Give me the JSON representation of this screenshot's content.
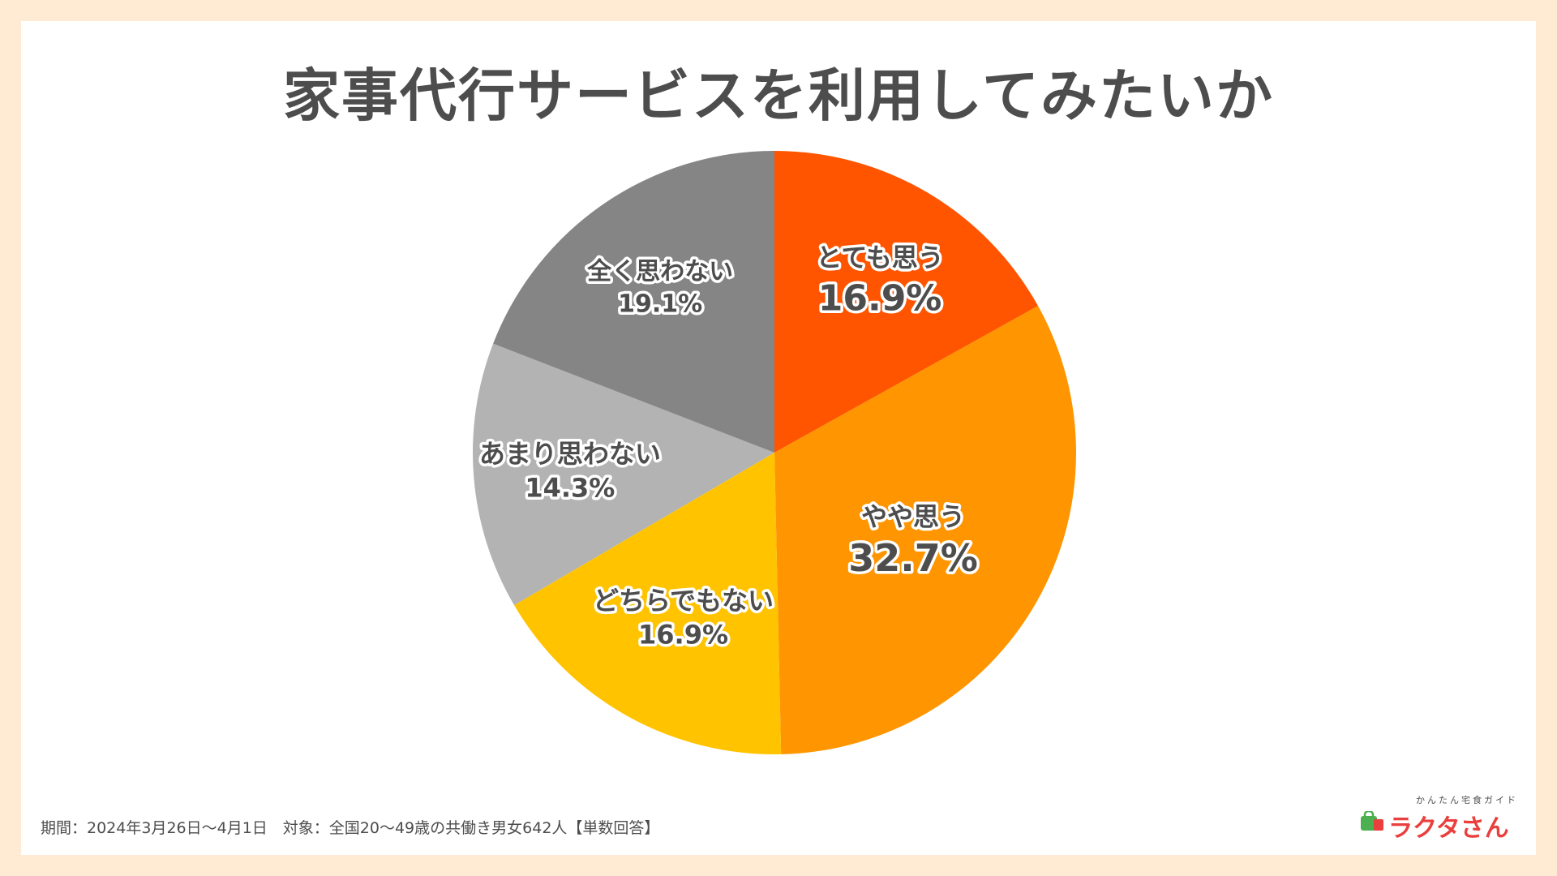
{
  "title": "家事代行サービスを利用してみたいか",
  "footnote": "期間：2024年3月26日～4月1日　対象：全国20～49歳の共働き男女642人【単数回答】",
  "logo": {
    "tagline": "かんたん宅食ガイド",
    "name": "ラクタさん"
  },
  "chart_data": {
    "type": "pie",
    "title": "家事代行サービスを利用してみたいか",
    "start": "12 o'clock",
    "direction": "clockwise",
    "slices": [
      {
        "label": "とても思う",
        "value": 16.9,
        "value_label": "16.9%",
        "color": "#ff5500"
      },
      {
        "label": "やや思う",
        "value": 32.7,
        "value_label": "32.7%",
        "color": "#ff9500"
      },
      {
        "label": "どちらでもない",
        "value": 16.9,
        "value_label": "16.9%",
        "color": "#ffc300"
      },
      {
        "label": "あまり思わない",
        "value": 14.3,
        "value_label": "14.3%",
        "color": "#b3b3b3"
      },
      {
        "label": "全く思わない",
        "value": 19.1,
        "value_label": "19.1%",
        "color": "#858585"
      }
    ]
  }
}
